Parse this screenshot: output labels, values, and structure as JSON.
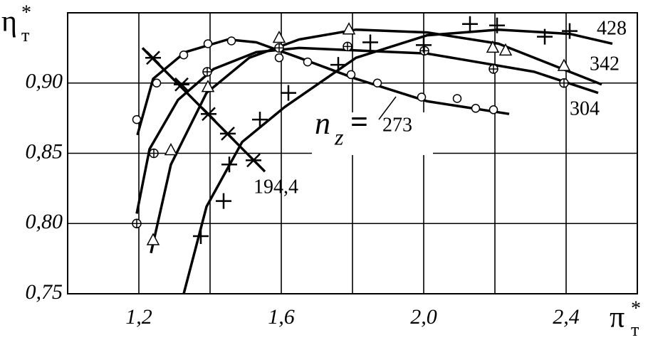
{
  "chart_data": {
    "type": "line",
    "y_label": {
      "symbol": "η",
      "sup": "*",
      "sub": "т"
    },
    "x_label": {
      "symbol": "π",
      "sup": "*",
      "sub": "т"
    },
    "annotation": {
      "symbol": "n",
      "sub": "z",
      "eq": "="
    },
    "xlim": [
      1.0,
      2.6
    ],
    "ylim": [
      0.75,
      0.95
    ],
    "xticks": [
      {
        "value": 1.2,
        "label": "1,2"
      },
      {
        "value": 1.6,
        "label": "1,6"
      },
      {
        "value": 2.0,
        "label": "2,0"
      },
      {
        "value": 2.4,
        "label": "2,4"
      }
    ],
    "xgrid": [
      1.2,
      1.4,
      1.6,
      1.8,
      2.0,
      2.2,
      2.4
    ],
    "yticks": [
      {
        "value": 0.75,
        "label": "0,75"
      },
      {
        "value": 0.8,
        "label": "0,80"
      },
      {
        "value": 0.85,
        "label": "0,85"
      },
      {
        "value": 0.9,
        "label": "0,90"
      }
    ],
    "grid": true,
    "series": [
      {
        "name": "273",
        "color": "#000000",
        "marker": "circle",
        "x": [
          1.194,
          1.25,
          1.326,
          1.394,
          1.46,
          1.594,
          1.674,
          1.796,
          1.87,
          1.994,
          2.094,
          2.146,
          2.196
        ],
        "values": [
          0.874,
          0.9,
          0.92,
          0.928,
          0.93,
          0.918,
          0.915,
          0.906,
          0.9,
          0.89,
          0.889,
          0.882,
          0.881
        ],
        "curve": {
          "x": [
            1.196,
            1.24,
            1.33,
            1.45,
            1.53,
            1.65,
            1.81,
            2.01,
            2.24
          ],
          "y": [
            0.863,
            0.903,
            0.922,
            0.931,
            0.929,
            0.918,
            0.903,
            0.887,
            0.878
          ]
        }
      },
      {
        "name": "304",
        "color": "#000000",
        "marker": "circle-plus",
        "x": [
          1.194,
          1.242,
          1.392,
          1.594,
          1.786,
          2.002,
          2.196,
          2.394
        ],
        "values": [
          0.8,
          0.85,
          0.908,
          0.925,
          0.926,
          0.923,
          0.91,
          0.9
        ],
        "curve": {
          "x": [
            1.194,
            1.23,
            1.31,
            1.41,
            1.53,
            1.65,
            2.01,
            2.31,
            2.49
          ],
          "y": [
            0.807,
            0.853,
            0.888,
            0.91,
            0.922,
            0.925,
            0.921,
            0.908,
            0.893
          ]
        }
      },
      {
        "name": "342",
        "color": "#000000",
        "marker": "triangle",
        "x": [
          1.24,
          1.29,
          1.394,
          1.594,
          1.79,
          2.194,
          2.23,
          2.394
        ],
        "values": [
          0.788,
          0.852,
          0.897,
          0.932,
          0.938,
          0.925,
          0.923,
          0.912
        ],
        "curve": {
          "x": [
            1.234,
            1.29,
            1.39,
            1.51,
            1.65,
            1.81,
            2.01,
            2.21,
            2.5
          ],
          "y": [
            0.779,
            0.842,
            0.893,
            0.918,
            0.931,
            0.938,
            0.936,
            0.928,
            0.899
          ]
        }
      },
      {
        "name": "428",
        "color": "#000000",
        "marker": "plus",
        "x": [
          1.374,
          1.438,
          1.454,
          1.54,
          1.62,
          1.76,
          1.85,
          2.0,
          2.13,
          2.206,
          2.34,
          2.41
        ],
        "values": [
          0.791,
          0.816,
          0.842,
          0.874,
          0.893,
          0.913,
          0.929,
          0.927,
          0.942,
          0.941,
          0.933,
          0.937
        ],
        "curve": {
          "x": [
            1.326,
            1.39,
            1.49,
            1.61,
            1.81,
            2.01,
            2.21,
            2.41,
            2.53
          ],
          "y": [
            0.75,
            0.812,
            0.858,
            0.883,
            0.918,
            0.934,
            0.938,
            0.935,
            0.928
          ]
        }
      },
      {
        "name": "194,4",
        "color": "#000000",
        "marker": "asterisk",
        "x": [
          1.24,
          1.32,
          1.396,
          1.45,
          1.522
        ],
        "values": [
          0.918,
          0.899,
          0.878,
          0.864,
          0.845
        ],
        "curve": {
          "x": [
            1.21,
            1.554
          ],
          "y": [
            0.925,
            0.837
          ]
        }
      }
    ]
  }
}
